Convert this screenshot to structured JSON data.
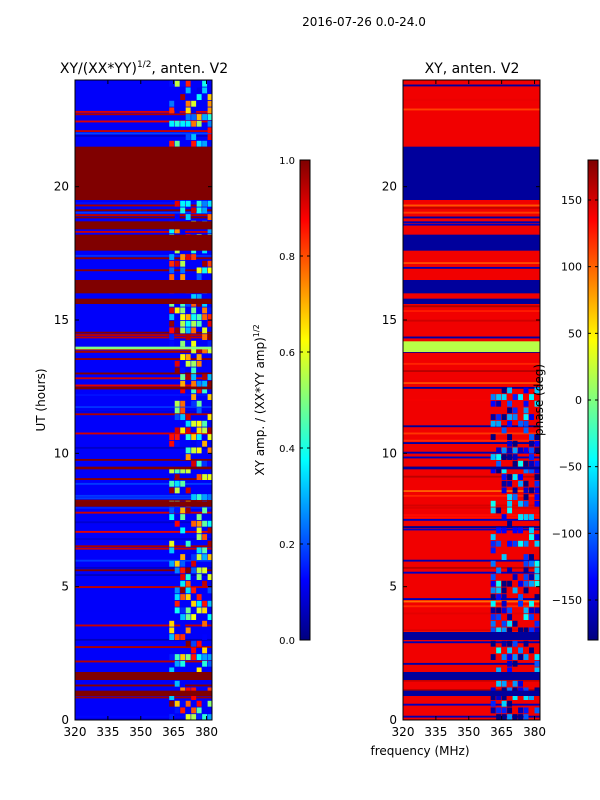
{
  "figure": {
    "suptitle": "2016-07-26 0.0-24.0",
    "shared_xlabel": "frequency (MHz)"
  },
  "chart_data": [
    {
      "type": "heatmap",
      "title_main": "XY/(XX*YY)",
      "title_sup": "1/2",
      "title_tail": ", anten. V2",
      "xlabel": "",
      "ylabel": "UT (hours)",
      "xlim": [
        320,
        382.5
      ],
      "ylim": [
        0,
        24
      ],
      "xticks": [
        320,
        335,
        350,
        365,
        380
      ],
      "yticks": [
        0,
        5,
        10,
        15,
        20
      ],
      "background_value": 0.12,
      "bands": [
        {
          "y0": 16.0,
          "y1": 16.5,
          "value": 1.0
        },
        {
          "y0": 17.6,
          "y1": 18.2,
          "value": 1.0
        },
        {
          "y0": 18.4,
          "y1": 18.7,
          "value": 1.0
        },
        {
          "y0": 19.5,
          "y1": 21.5,
          "value": 1.0
        },
        {
          "y0": 15.6,
          "y1": 15.8,
          "value": 1.0
        },
        {
          "y0": 12.4,
          "y1": 12.5,
          "value": 1.0
        },
        {
          "y0": 9.4,
          "y1": 9.5,
          "value": 1.0
        },
        {
          "y0": 8.0,
          "y1": 8.2,
          "value": 1.0
        },
        {
          "y0": 1.5,
          "y1": 1.8,
          "value": 1.0
        },
        {
          "y0": 0.9,
          "y1": 1.1,
          "value": 1.0
        },
        {
          "y0": 13.9,
          "y1": 14.0,
          "value": 0.5
        }
      ],
      "hot_region": {
        "x0": 363,
        "x1": 381,
        "value": 0.55
      },
      "colorbar": {
        "label_main": "XY amp. / (XX*YY amp)",
        "label_sup": "1/2",
        "range": [
          0.0,
          1.0
        ],
        "ticks": [
          0.0,
          0.2,
          0.4,
          0.6,
          0.8,
          1.0
        ],
        "tick_labels": [
          "0.0",
          "0.2",
          "0.4",
          "0.6",
          "0.8",
          "1.0"
        ]
      }
    },
    {
      "type": "heatmap",
      "title_main": "XY, anten. V2",
      "xlabel": "",
      "ylabel": "",
      "xlim": [
        320,
        382.5
      ],
      "ylim": [
        0,
        24
      ],
      "xticks": [
        320,
        335,
        350,
        365,
        380
      ],
      "yticks": [
        0,
        5,
        10,
        15,
        20
      ],
      "background_value": 140,
      "bands": [
        {
          "y0": 19.5,
          "y1": 21.5,
          "value": -170
        },
        {
          "y0": 17.6,
          "y1": 18.2,
          "value": -170
        },
        {
          "y0": 16.0,
          "y1": 16.5,
          "value": -170
        },
        {
          "y0": 15.6,
          "y1": 15.8,
          "value": -170
        },
        {
          "y0": 13.8,
          "y1": 14.2,
          "value": 20
        },
        {
          "y0": 9.4,
          "y1": 9.5,
          "value": -170
        },
        {
          "y0": 3.0,
          "y1": 3.3,
          "value": -170
        },
        {
          "y0": 1.5,
          "y1": 1.8,
          "value": -170
        },
        {
          "y0": 0.9,
          "y1": 1.1,
          "value": -170
        }
      ],
      "cold_region": {
        "x0": 360,
        "x1": 382.5,
        "y0": 0,
        "y1": 12.3,
        "value": -120
      },
      "colorbar": {
        "label_main": "phase (deg)",
        "range": [
          -180,
          180
        ],
        "ticks": [
          -150,
          -100,
          -50,
          0,
          50,
          100,
          150
        ],
        "tick_labels": [
          "−150",
          "−100",
          "−50",
          "0",
          "50",
          "100",
          "150"
        ]
      }
    }
  ]
}
